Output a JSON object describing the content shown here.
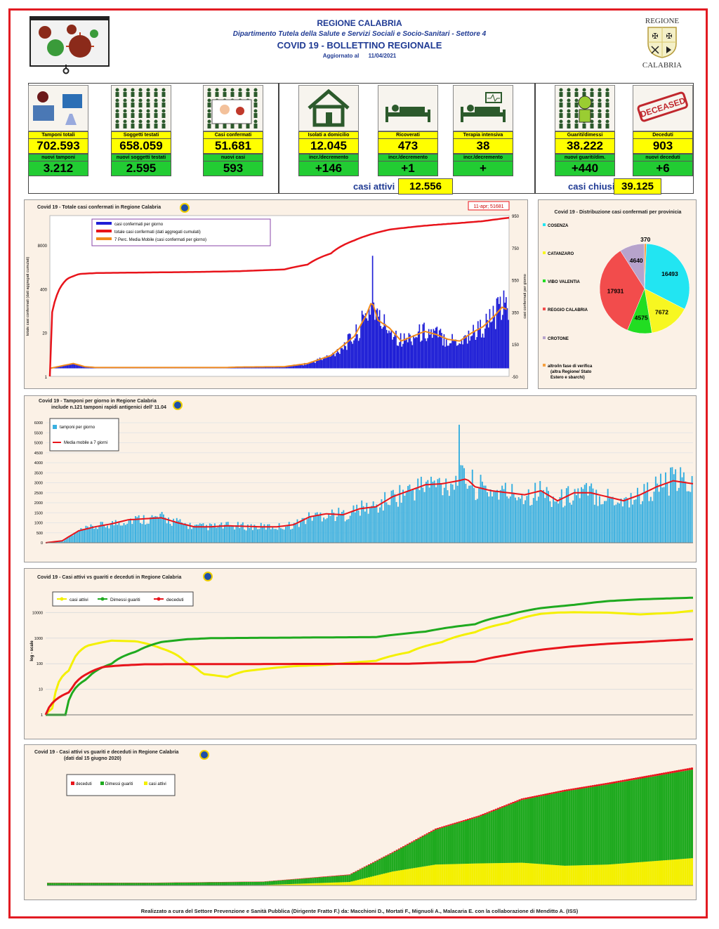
{
  "header": {
    "region": "REGIONE CALABRIA",
    "department": "Dipartimento Tutela della Salute e Servizi Sociali e Socio-Sanitari - Settore 4",
    "bulletin": "COVID 19 - BOLLETTINO REGIONALE",
    "updated_label": "Aggiornato al",
    "updated_date": "11/04/2021",
    "logo_top": "REGIONE",
    "logo_bottom": "CALABRIA"
  },
  "cards": [
    {
      "label": "Tamponi totali",
      "value": "702.593",
      "new_label": "nuovi tamponi",
      "new_value": "3.212",
      "icon": "lab-equipment-icon"
    },
    {
      "label": "Soggetti testati",
      "value": "658.059",
      "new_label": "nuovi soggetti testati",
      "new_value": "2.595",
      "icon": "people-grid-icon"
    },
    {
      "label": "Casi confermati",
      "value": "51.681",
      "new_label": "nuovi casi",
      "new_value": "593",
      "icon": "virus-person-icon"
    },
    {
      "label": "Isolati a domicilio",
      "value": "12.045",
      "new_label": "incr./decremento",
      "new_value": "+146",
      "icon": "house-icon"
    },
    {
      "label": "Ricoverati",
      "value": "473",
      "new_label": "incr./decremento",
      "new_value": "+1",
      "icon": "hospital-bed-icon"
    },
    {
      "label": "Terapia intensiva",
      "value": "38",
      "new_label": "incr./decremento",
      "new_value": "+",
      "icon": "icu-bed-icon"
    },
    {
      "label": "Guariti/dimessi",
      "value": "38.222",
      "new_label": "nuovi guariti/dim.",
      "new_value": "+440",
      "icon": "recovered-person-icon"
    },
    {
      "label": "Deceduti",
      "value": "903",
      "new_label": "nuovi deceduti",
      "new_value": "+6",
      "icon": "deceased-stamp-icon"
    }
  ],
  "summary": {
    "active_label": "casi attivi",
    "active_value": "12.556",
    "closed_label": "casi chiusi",
    "closed_value": "39.125"
  },
  "stamp_text": "DECEASED",
  "footer": "Realizzato a cura del Settore Prevenzione e Sanità Pubblica (Dirigente Fratto F.) da: Macchioni D., Mortati F., Mignuoli A., Malacaria E. con la collaborazione di Menditto A. (ISS)",
  "colors": {
    "blue": "#1f1fd6",
    "red": "#e8141b",
    "orange": "#f08a1c",
    "cyan": "#3ab0e0",
    "yellow": "#f4f000",
    "green": "#1faa1f",
    "pie_cosenza": "#22e5f2",
    "pie_catanzaro": "#f7f721",
    "pie_vibo": "#22dd22",
    "pie_reggio": "#f24c4c",
    "pie_crotone": "#b7a3cc"
  },
  "chart_data": [
    {
      "type": "bar",
      "title": "Covid 19 - Totale casi confermati in Regione Calabria",
      "ylabel": "totale casi confermati (dati aggregati cumulati)",
      "y2label": "casi confermati per giorno",
      "left_ticks": [
        "1",
        "20",
        "400",
        "8000"
      ],
      "right_ticks": [
        "-50",
        "150",
        "350",
        "550",
        "750",
        "950"
      ],
      "annotation": "11-apr; 51681",
      "legend": [
        "casi confermati per giorno",
        "totale casi confermati (dati aggregati cumulati)",
        "7 Perc. Media Mobile (casi confermati per giorno)"
      ],
      "series_daily_anchors": [
        [
          0,
          0
        ],
        [
          10,
          15
        ],
        [
          20,
          30
        ],
        [
          30,
          10
        ],
        [
          40,
          5
        ],
        [
          150,
          5
        ],
        [
          160,
          8
        ],
        [
          200,
          10
        ],
        [
          220,
          30
        ],
        [
          240,
          80
        ],
        [
          260,
          200
        ],
        [
          270,
          330
        ],
        [
          275,
          420
        ],
        [
          280,
          300
        ],
        [
          290,
          250
        ],
        [
          300,
          170
        ],
        [
          310,
          200
        ],
        [
          320,
          230
        ],
        [
          330,
          210
        ],
        [
          340,
          180
        ],
        [
          350,
          170
        ],
        [
          360,
          220
        ],
        [
          370,
          260
        ],
        [
          380,
          330
        ],
        [
          386,
          380
        ],
        [
          392,
          360
        ]
      ],
      "series_cumulative_anchors": [
        [
          0,
          1
        ],
        [
          5,
          200
        ],
        [
          15,
          800
        ],
        [
          25,
          1100
        ],
        [
          40,
          1180
        ],
        [
          80,
          1220
        ],
        [
          120,
          1260
        ],
        [
          160,
          1330
        ],
        [
          200,
          1500
        ],
        [
          220,
          2100
        ],
        [
          240,
          4500
        ],
        [
          260,
          11000
        ],
        [
          275,
          17000
        ],
        [
          290,
          23000
        ],
        [
          320,
          30000
        ],
        [
          350,
          36000
        ],
        [
          370,
          41000
        ],
        [
          392,
          51681
        ]
      ],
      "xlim": [
        0,
        392
      ],
      "legend_position": "top-left"
    },
    {
      "type": "pie",
      "title": "Covid 19 - Distribuzione casi confermati per provinicia",
      "labels": [
        "COSENZA",
        "CATANZARO",
        "VIBO VALENTIA",
        "REGGIO CALABRIA",
        "CROTONE",
        "altro/in fase di verifica (altra Regione/ Stato Estero e sbarchi)"
      ],
      "values": [
        16493,
        7672,
        4575,
        17931,
        4640,
        370
      ]
    },
    {
      "type": "bar",
      "title": "Covid 19 - Tamponi per giorno in Regione Calabria",
      "subtitle": "include n.121  tamponi rapidi antigenici dell' 11.04",
      "yticks": [
        0,
        500,
        1000,
        1500,
        2000,
        2500,
        3000,
        3500,
        4000,
        4500,
        5000,
        5500,
        6000
      ],
      "ylim": [
        0,
        6000
      ],
      "legend": [
        "tamponi per giorno",
        "Media mobile a 7 giorni"
      ],
      "series_anchors": [
        [
          0,
          0
        ],
        [
          10,
          100
        ],
        [
          20,
          600
        ],
        [
          30,
          800
        ],
        [
          40,
          950
        ],
        [
          50,
          1150
        ],
        [
          60,
          1200
        ],
        [
          70,
          1250
        ],
        [
          80,
          1000
        ],
        [
          90,
          800
        ],
        [
          100,
          800
        ],
        [
          110,
          850
        ],
        [
          130,
          800
        ],
        [
          140,
          800
        ],
        [
          150,
          900
        ],
        [
          160,
          1300
        ],
        [
          170,
          1450
        ],
        [
          180,
          1400
        ],
        [
          190,
          1700
        ],
        [
          200,
          1800
        ],
        [
          210,
          2300
        ],
        [
          220,
          2600
        ],
        [
          230,
          2900
        ],
        [
          240,
          2950
        ],
        [
          250,
          3100
        ],
        [
          255,
          3200
        ],
        [
          260,
          2800
        ],
        [
          270,
          2600
        ],
        [
          280,
          2500
        ],
        [
          290,
          2400
        ],
        [
          300,
          2600
        ],
        [
          310,
          2100
        ],
        [
          320,
          2500
        ],
        [
          330,
          2500
        ],
        [
          340,
          2300
        ],
        [
          350,
          2100
        ],
        [
          360,
          2400
        ],
        [
          370,
          2800
        ],
        [
          380,
          3100
        ],
        [
          392,
          2950
        ]
      ],
      "xlim": [
        0,
        392
      ],
      "legend_position": "top-left"
    },
    {
      "type": "line",
      "title": "Covid 19 - Casi attivi vs guariti e deceduti in Regione Calabria",
      "ylabel": "log - scale",
      "yticks": [
        "1",
        "10",
        "100",
        "1000",
        "10000"
      ],
      "legend": [
        "casi attivi",
        "Dimessi guariti",
        "deceduti"
      ],
      "series": [
        {
          "name": "casi attivi",
          "anchors": [
            [
              0,
              1
            ],
            [
              5,
              2
            ],
            [
              15,
              60
            ],
            [
              25,
              500
            ],
            [
              40,
              800
            ],
            [
              55,
              750
            ],
            [
              70,
              400
            ],
            [
              85,
              110
            ],
            [
              95,
              40
            ],
            [
              110,
              30
            ],
            [
              120,
              50
            ],
            [
              130,
              60
            ],
            [
              150,
              80
            ],
            [
              170,
              90
            ],
            [
              200,
              130
            ],
            [
              220,
              280
            ],
            [
              240,
              700
            ],
            [
              260,
              1700
            ],
            [
              280,
              4000
            ],
            [
              300,
              9000
            ],
            [
              310,
              10000
            ],
            [
              320,
              10300
            ],
            [
              340,
              10000
            ],
            [
              360,
              8500
            ],
            [
              380,
              9800
            ],
            [
              392,
              11800
            ]
          ]
        },
        {
          "name": "Dimessi guariti",
          "anchors": [
            [
              0,
              1
            ],
            [
              12,
              1
            ],
            [
              15,
              5
            ],
            [
              25,
              25
            ],
            [
              40,
              100
            ],
            [
              55,
              300
            ],
            [
              70,
              700
            ],
            [
              85,
              900
            ],
            [
              100,
              1000
            ],
            [
              200,
              1100
            ],
            [
              230,
              1800
            ],
            [
              260,
              3500
            ],
            [
              280,
              8000
            ],
            [
              300,
              15000
            ],
            [
              320,
              20000
            ],
            [
              340,
              28000
            ],
            [
              360,
              33000
            ],
            [
              392,
              38222
            ]
          ]
        },
        {
          "name": "deceduti",
          "anchors": [
            [
              0,
              1
            ],
            [
              15,
              8
            ],
            [
              25,
              40
            ],
            [
              35,
              75
            ],
            [
              45,
              85
            ],
            [
              60,
              95
            ],
            [
              220,
              100
            ],
            [
              260,
              120
            ],
            [
              280,
              220
            ],
            [
              300,
              350
            ],
            [
              320,
              480
            ],
            [
              340,
              600
            ],
            [
              360,
              700
            ],
            [
              392,
              903
            ]
          ]
        }
      ],
      "xlim": [
        0,
        392
      ],
      "legend_position": "top-left"
    },
    {
      "type": "area",
      "title": "Covid 19 - Casi attivi vs guariti e deceduti in Regione Calabria",
      "subtitle": "(dati dal 15 giugno 2020)",
      "legend": [
        "deceduti",
        "Dimessi guariti",
        "casi attivi"
      ],
      "series": [
        {
          "name": "casi attivi",
          "anchors": [
            [
              0,
              60
            ],
            [
              50,
              70
            ],
            [
              100,
              200
            ],
            [
              140,
              1500
            ],
            [
              160,
              6000
            ],
            [
              180,
              9000
            ],
            [
              200,
              9500
            ],
            [
              220,
              9800
            ],
            [
              240,
              8500
            ],
            [
              260,
              9000
            ],
            [
              300,
              11800
            ]
          ]
        },
        {
          "name": "Dimessi guariti",
          "anchors": [
            [
              0,
              1000
            ],
            [
              50,
              1050
            ],
            [
              100,
              1400
            ],
            [
              140,
              3000
            ],
            [
              160,
              8000
            ],
            [
              180,
              15000
            ],
            [
              200,
              20000
            ],
            [
              220,
              27000
            ],
            [
              240,
              32000
            ],
            [
              260,
              34500
            ],
            [
              300,
              38222
            ]
          ]
        },
        {
          "name": "deceduti",
          "anchors": [
            [
              0,
              97
            ],
            [
              100,
              100
            ],
            [
              140,
              250
            ],
            [
              180,
              500
            ],
            [
              220,
              650
            ],
            [
              260,
              750
            ],
            [
              300,
              903
            ]
          ]
        }
      ],
      "ylim": [
        0,
        52000
      ],
      "xlim": [
        0,
        300
      ],
      "legend_position": "top-left"
    }
  ]
}
